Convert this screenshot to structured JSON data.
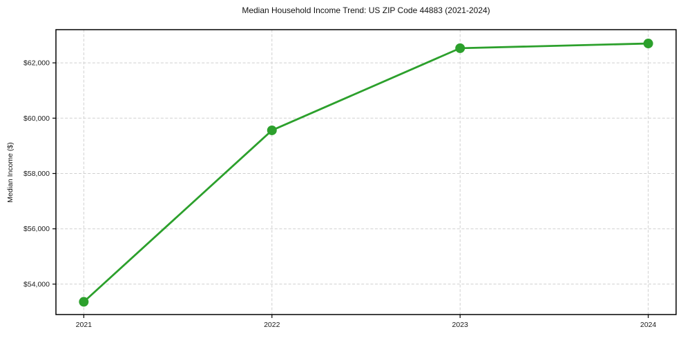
{
  "chart_data": {
    "type": "line",
    "title": "Median Household Income Trend: US ZIP Code 44883 (2021-2024)",
    "xlabel": "",
    "ylabel": "Median Income ($)",
    "x": [
      2021,
      2022,
      2023,
      2024
    ],
    "x_tick_labels": [
      "2021",
      "2022",
      "2023",
      "2024"
    ],
    "series": [
      {
        "name": "Median Household Income",
        "values": [
          53360,
          59560,
          62530,
          62700
        ],
        "color": "#2ca02c",
        "marker": "circle",
        "line_style": "solid"
      }
    ],
    "y_ticks": [
      {
        "value": 54000,
        "label": "$54,000"
      },
      {
        "value": 56000,
        "label": "$56,000"
      },
      {
        "value": 58000,
        "label": "$58,000"
      },
      {
        "value": 60000,
        "label": "$60,000"
      },
      {
        "value": 62000,
        "label": "$62,000"
      }
    ],
    "xlim": [
      2020.852,
      2024.148
    ],
    "ylim": [
      52900,
      63200
    ],
    "grid": true,
    "legend": "none"
  },
  "colors": {
    "line": "#2ca02c",
    "grid": "#cfcfcf",
    "spine": "#000000",
    "background": "#ffffff",
    "text": "#1a1a1a"
  }
}
